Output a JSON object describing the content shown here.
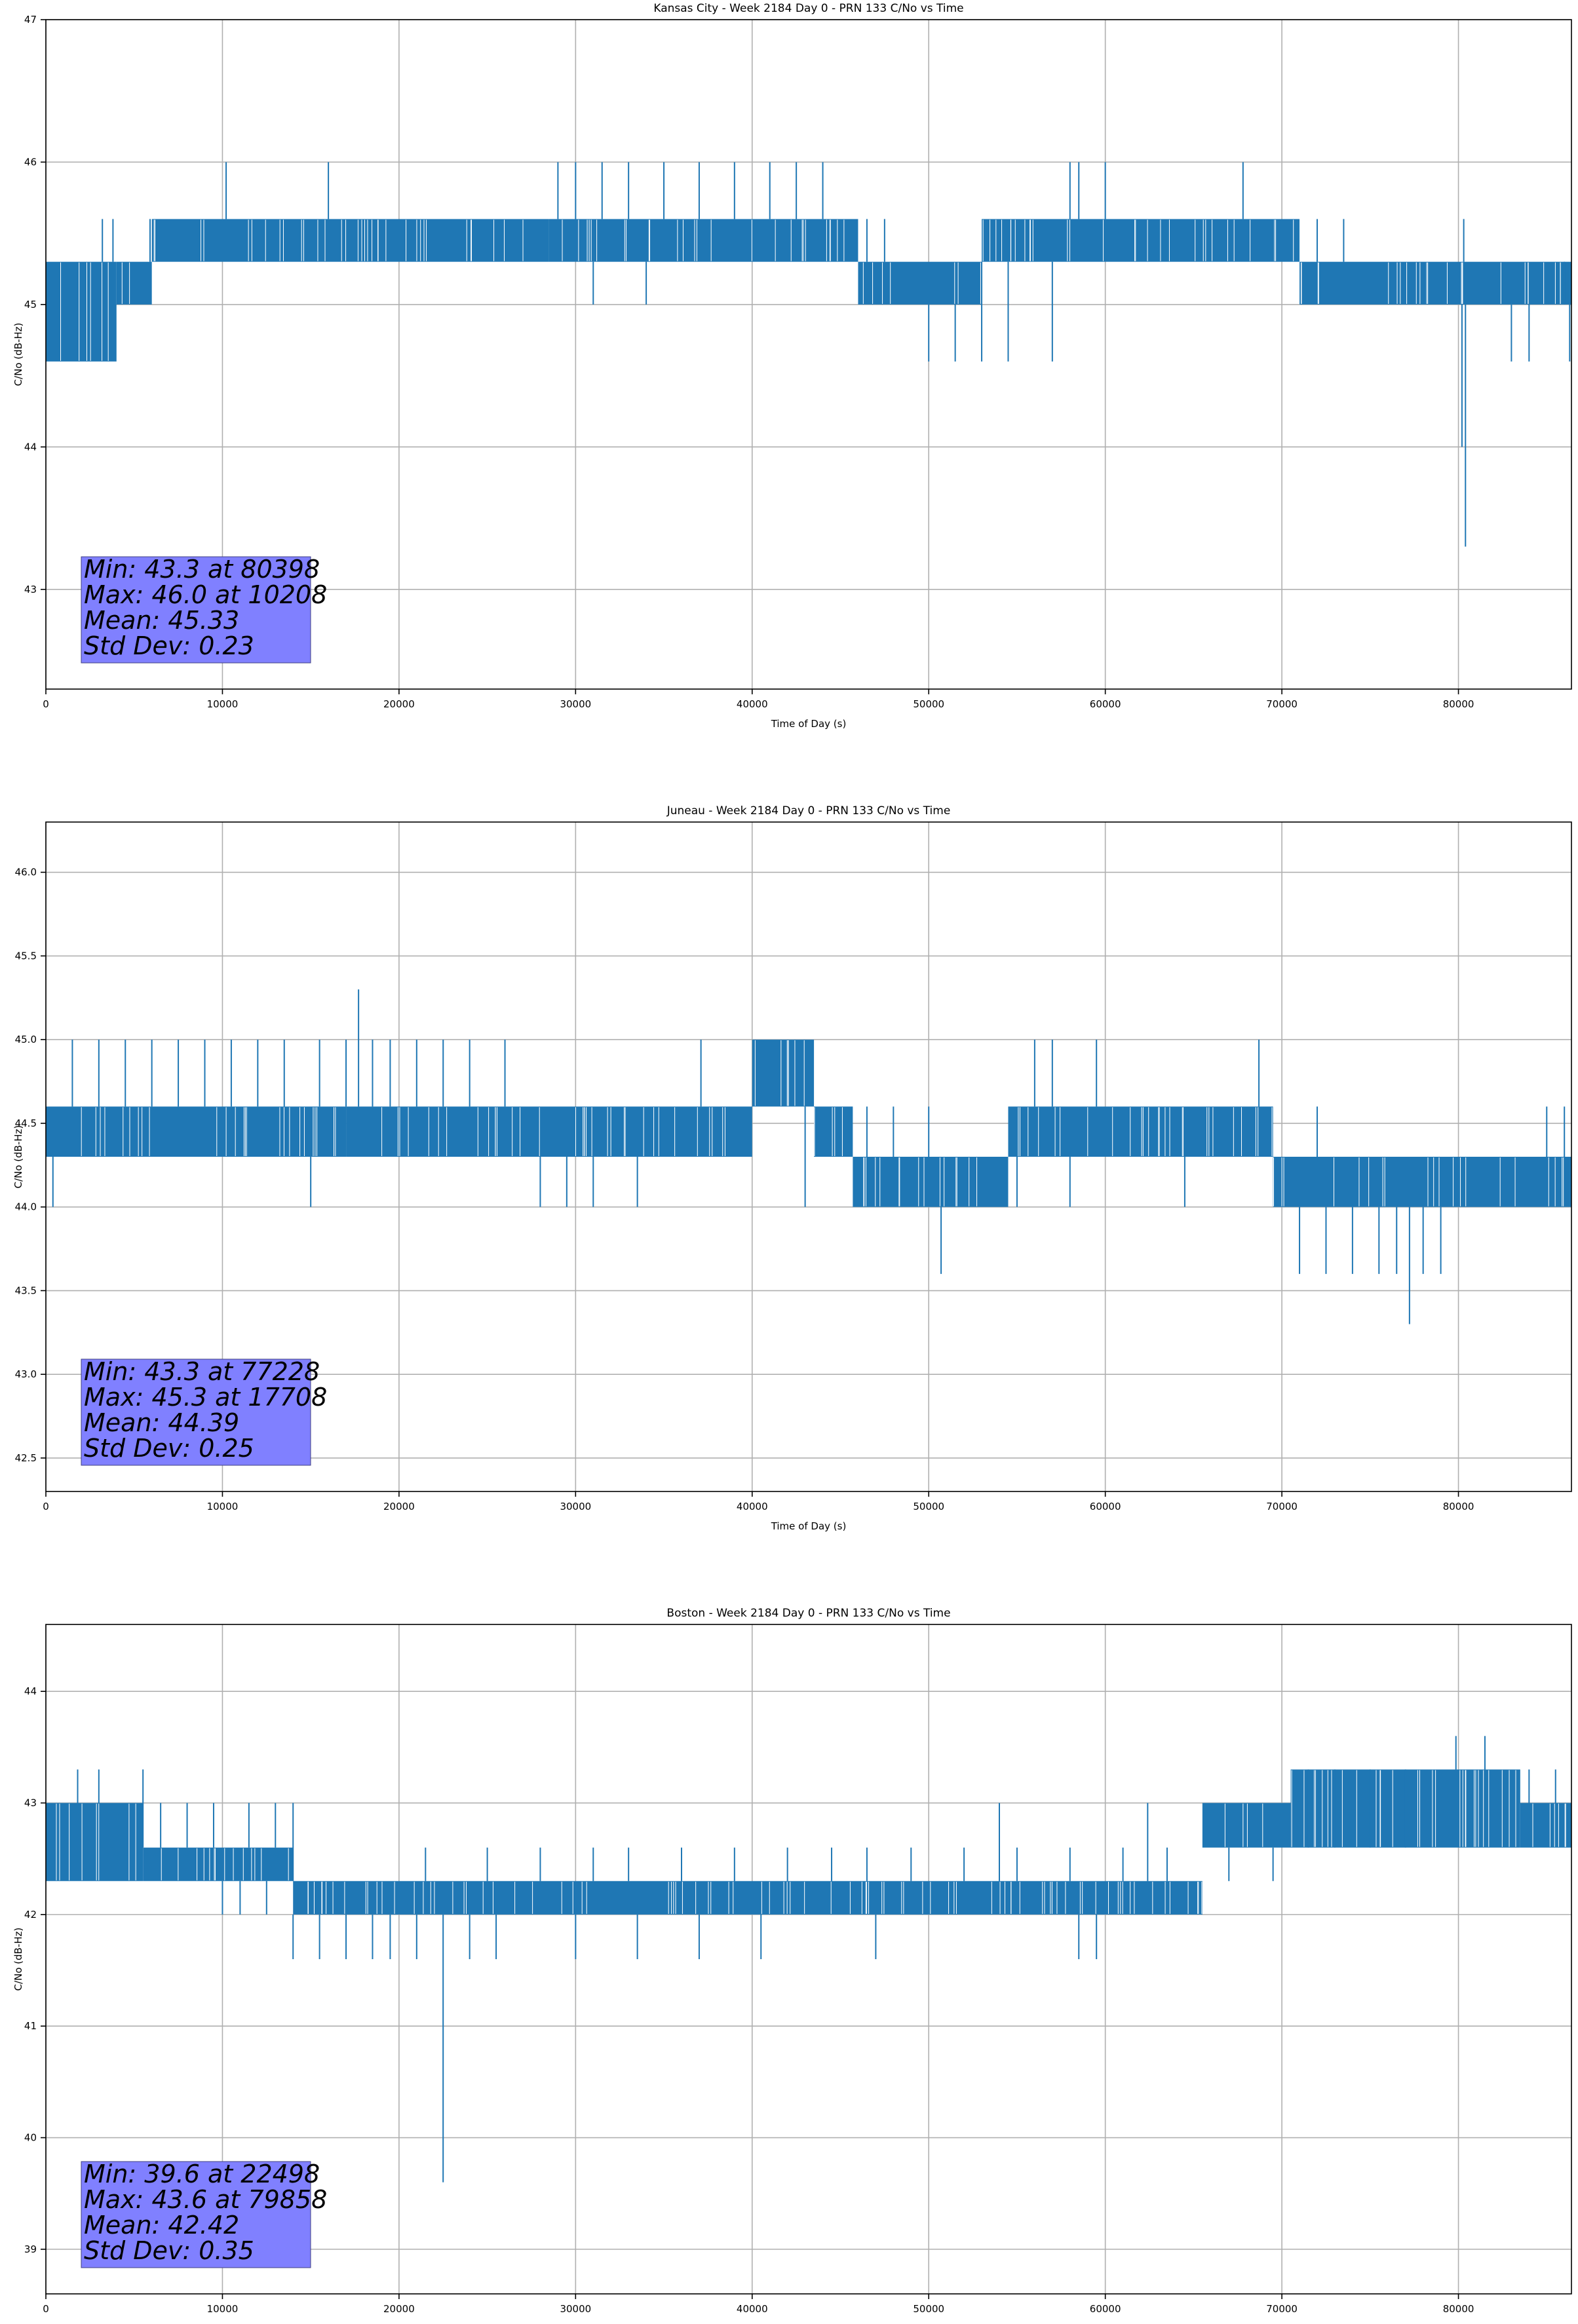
{
  "chart_data": [
    {
      "type": "line",
      "title": "Kansas City - Week 2184 Day 0 - PRN 133 C/No vs Time",
      "xlabel": "Time of Day (s)",
      "ylabel": "C/No (dB-Hz)",
      "xlim": [
        0,
        86400
      ],
      "ylim": [
        42.3,
        47.0
      ],
      "xticks": [
        0,
        10000,
        20000,
        30000,
        40000,
        50000,
        60000,
        70000,
        80000
      ],
      "yticks": [
        43,
        44,
        45,
        46,
        47
      ],
      "ytick_labels": [
        "43",
        "44",
        "45",
        "46",
        "47"
      ],
      "grid": true,
      "line_color": "#1f77b4",
      "stats_box_color": "#8080ff",
      "stats": [
        "Min: 43.3 at 80398",
        "Max: 46.0 at 10208",
        "Mean: 45.33",
        "Std Dev: 0.23"
      ],
      "series": [
        {
          "segments": [
            {
              "x": [
                0,
                4000
              ],
              "band": [
                44.6,
                45.3
              ]
            },
            {
              "x": [
                4000,
                6000
              ],
              "band": [
                45.0,
                45.3
              ]
            },
            {
              "x": [
                6000,
                28500
              ],
              "band": [
                45.3,
                45.6
              ]
            },
            {
              "x": [
                28500,
                46000
              ],
              "band": [
                45.3,
                45.6
              ]
            },
            {
              "x": [
                46000,
                53000
              ],
              "band": [
                45.0,
                45.3
              ]
            },
            {
              "x": [
                53000,
                71000
              ],
              "band": [
                45.3,
                45.6
              ]
            },
            {
              "x": [
                71000,
                86400
              ],
              "band": [
                45.0,
                45.3
              ]
            }
          ],
          "spikes": [
            {
              "x": 500,
              "y": 44.6
            },
            {
              "x": 1200,
              "y": 44.6
            },
            {
              "x": 2600,
              "y": 44.6
            },
            {
              "x": 3900,
              "y": 44.6
            },
            {
              "x": 3200,
              "y": 45.6
            },
            {
              "x": 3800,
              "y": 45.6
            },
            {
              "x": 5900,
              "y": 45.6
            },
            {
              "x": 10208,
              "y": 46.0
            },
            {
              "x": 16000,
              "y": 46.0
            },
            {
              "x": 29000,
              "y": 46.0
            },
            {
              "x": 30000,
              "y": 46.0
            },
            {
              "x": 31500,
              "y": 46.0
            },
            {
              "x": 33000,
              "y": 46.0
            },
            {
              "x": 35000,
              "y": 46.0
            },
            {
              "x": 37000,
              "y": 46.0
            },
            {
              "x": 39000,
              "y": 46.0
            },
            {
              "x": 41000,
              "y": 46.0
            },
            {
              "x": 42500,
              "y": 46.0
            },
            {
              "x": 44000,
              "y": 46.0
            },
            {
              "x": 31000,
              "y": 45.0
            },
            {
              "x": 34000,
              "y": 45.0
            },
            {
              "x": 46500,
              "y": 45.6
            },
            {
              "x": 47500,
              "y": 45.6
            },
            {
              "x": 50000,
              "y": 44.6
            },
            {
              "x": 51500,
              "y": 44.6
            },
            {
              "x": 53000,
              "y": 44.6
            },
            {
              "x": 54500,
              "y": 44.6
            },
            {
              "x": 57000,
              "y": 44.6
            },
            {
              "x": 58000,
              "y": 46.0
            },
            {
              "x": 58500,
              "y": 46.0
            },
            {
              "x": 60000,
              "y": 46.0
            },
            {
              "x": 67800,
              "y": 46.0
            },
            {
              "x": 72000,
              "y": 45.6
            },
            {
              "x": 73500,
              "y": 45.6
            },
            {
              "x": 80300,
              "y": 45.6
            },
            {
              "x": 80398,
              "y": 43.3
            },
            {
              "x": 80200,
              "y": 44.0
            },
            {
              "x": 83000,
              "y": 44.6
            },
            {
              "x": 84000,
              "y": 44.6
            },
            {
              "x": 86300,
              "y": 44.6
            },
            {
              "x": 86000,
              "y": 45.3
            }
          ]
        }
      ]
    },
    {
      "type": "line",
      "title": "Juneau - Week 2184 Day 0 - PRN 133 C/No vs Time",
      "xlabel": "Time of Day (s)",
      "ylabel": "C/No (dB-Hz)",
      "xlim": [
        0,
        86400
      ],
      "ylim": [
        42.3,
        46.3
      ],
      "xticks": [
        0,
        10000,
        20000,
        30000,
        40000,
        50000,
        60000,
        70000,
        80000
      ],
      "yticks": [
        42.5,
        43.0,
        43.5,
        44.0,
        44.5,
        45.0,
        45.5,
        46.0
      ],
      "ytick_labels": [
        "42.5",
        "43.0",
        "43.5",
        "44.0",
        "44.5",
        "45.0",
        "45.5",
        "46.0"
      ],
      "grid": true,
      "line_color": "#1f77b4",
      "stats_box_color": "#8080ff",
      "stats": [
        "Min: 43.3 at 77228",
        "Max: 45.3 at 17708",
        "Mean: 44.39",
        "Std Dev: 0.25"
      ],
      "series": [
        {
          "segments": [
            {
              "x": [
                0,
                17000
              ],
              "band": [
                44.3,
                44.6
              ]
            },
            {
              "x": [
                17000,
                20000
              ],
              "band": [
                44.3,
                44.6
              ]
            },
            {
              "x": [
                20000,
                40000
              ],
              "band": [
                44.3,
                44.6
              ]
            },
            {
              "x": [
                40000,
                43500
              ],
              "band": [
                44.6,
                45.0
              ]
            },
            {
              "x": [
                43500,
                45700
              ],
              "band": [
                44.3,
                44.6
              ]
            },
            {
              "x": [
                45700,
                54500
              ],
              "band": [
                44.0,
                44.3
              ]
            },
            {
              "x": [
                54500,
                69500
              ],
              "band": [
                44.3,
                44.6
              ]
            },
            {
              "x": [
                69500,
                86400
              ],
              "band": [
                44.0,
                44.3
              ]
            }
          ],
          "spikes": [
            {
              "x": 400,
              "y": 44.0
            },
            {
              "x": 1500,
              "y": 45.0
            },
            {
              "x": 3000,
              "y": 45.0
            },
            {
              "x": 4500,
              "y": 45.0
            },
            {
              "x": 6000,
              "y": 45.0
            },
            {
              "x": 7500,
              "y": 45.0
            },
            {
              "x": 9000,
              "y": 45.0
            },
            {
              "x": 10500,
              "y": 45.0
            },
            {
              "x": 12000,
              "y": 45.0
            },
            {
              "x": 13500,
              "y": 45.0
            },
            {
              "x": 15500,
              "y": 45.0
            },
            {
              "x": 17000,
              "y": 45.0
            },
            {
              "x": 18500,
              "y": 45.0
            },
            {
              "x": 19500,
              "y": 45.0
            },
            {
              "x": 21000,
              "y": 45.0
            },
            {
              "x": 22500,
              "y": 45.0
            },
            {
              "x": 24000,
              "y": 45.0
            },
            {
              "x": 26000,
              "y": 45.0
            },
            {
              "x": 37100,
              "y": 45.0
            },
            {
              "x": 17708,
              "y": 45.3
            },
            {
              "x": 15000,
              "y": 44.0
            },
            {
              "x": 28000,
              "y": 44.0
            },
            {
              "x": 29500,
              "y": 44.0
            },
            {
              "x": 31000,
              "y": 44.0
            },
            {
              "x": 33500,
              "y": 44.0
            },
            {
              "x": 42000,
              "y": 44.6
            },
            {
              "x": 43000,
              "y": 44.0
            },
            {
              "x": 46500,
              "y": 44.6
            },
            {
              "x": 48000,
              "y": 44.6
            },
            {
              "x": 50000,
              "y": 44.6
            },
            {
              "x": 50700,
              "y": 43.6
            },
            {
              "x": 56000,
              "y": 45.0
            },
            {
              "x": 57000,
              "y": 45.0
            },
            {
              "x": 59500,
              "y": 45.0
            },
            {
              "x": 68700,
              "y": 45.0
            },
            {
              "x": 55000,
              "y": 44.0
            },
            {
              "x": 58000,
              "y": 44.0
            },
            {
              "x": 64500,
              "y": 44.0
            },
            {
              "x": 71000,
              "y": 43.6
            },
            {
              "x": 72500,
              "y": 43.6
            },
            {
              "x": 74000,
              "y": 43.6
            },
            {
              "x": 75500,
              "y": 43.6
            },
            {
              "x": 76500,
              "y": 43.6
            },
            {
              "x": 78000,
              "y": 43.6
            },
            {
              "x": 79000,
              "y": 43.6
            },
            {
              "x": 77228,
              "y": 43.3
            },
            {
              "x": 72000,
              "y": 44.6
            },
            {
              "x": 85000,
              "y": 44.6
            },
            {
              "x": 86000,
              "y": 44.6
            }
          ]
        }
      ]
    },
    {
      "type": "line",
      "title": "Boston - Week 2184 Day 0 - PRN 133 C/No vs Time",
      "xlabel": "Time of Day (s)",
      "ylabel": "C/No (dB-Hz)",
      "xlim": [
        0,
        86400
      ],
      "ylim": [
        38.6,
        44.6
      ],
      "xticks": [
        0,
        10000,
        20000,
        30000,
        40000,
        50000,
        60000,
        70000,
        80000
      ],
      "yticks": [
        39,
        40,
        41,
        42,
        43,
        44
      ],
      "ytick_labels": [
        "39",
        "40",
        "41",
        "42",
        "43",
        "44"
      ],
      "grid": true,
      "line_color": "#1f77b4",
      "stats_box_color": "#8080ff",
      "stats": [
        "Min: 39.6 at 22498",
        "Max: 43.6 at 79858",
        "Mean: 42.42",
        "Std Dev: 0.35"
      ],
      "series": [
        {
          "segments": [
            {
              "x": [
                0,
                5500
              ],
              "band": [
                42.3,
                43.0
              ]
            },
            {
              "x": [
                5500,
                14000
              ],
              "band": [
                42.3,
                42.6
              ]
            },
            {
              "x": [
                14000,
                65500
              ],
              "band": [
                42.0,
                42.3
              ]
            },
            {
              "x": [
                65500,
                70500
              ],
              "band": [
                42.6,
                43.0
              ]
            },
            {
              "x": [
                70500,
                83500
              ],
              "band": [
                42.6,
                43.3
              ]
            },
            {
              "x": [
                83500,
                86400
              ],
              "band": [
                42.6,
                43.0
              ]
            }
          ],
          "spikes": [
            {
              "x": 1800,
              "y": 43.3
            },
            {
              "x": 3000,
              "y": 43.3
            },
            {
              "x": 5500,
              "y": 43.3
            },
            {
              "x": 6500,
              "y": 43.0
            },
            {
              "x": 8000,
              "y": 43.0
            },
            {
              "x": 9500,
              "y": 43.0
            },
            {
              "x": 11500,
              "y": 43.0
            },
            {
              "x": 13000,
              "y": 43.0
            },
            {
              "x": 14000,
              "y": 43.0
            },
            {
              "x": 10000,
              "y": 42.0
            },
            {
              "x": 11000,
              "y": 42.0
            },
            {
              "x": 12500,
              "y": 42.0
            },
            {
              "x": 14000,
              "y": 41.6
            },
            {
              "x": 15500,
              "y": 41.6
            },
            {
              "x": 17000,
              "y": 41.6
            },
            {
              "x": 18500,
              "y": 41.6
            },
            {
              "x": 19500,
              "y": 41.6
            },
            {
              "x": 21000,
              "y": 41.6
            },
            {
              "x": 24000,
              "y": 41.6
            },
            {
              "x": 25500,
              "y": 41.6
            },
            {
              "x": 30000,
              "y": 41.6
            },
            {
              "x": 33500,
              "y": 41.6
            },
            {
              "x": 37000,
              "y": 41.6
            },
            {
              "x": 40500,
              "y": 41.6
            },
            {
              "x": 47000,
              "y": 41.6
            },
            {
              "x": 58500,
              "y": 41.6
            },
            {
              "x": 59500,
              "y": 41.6
            },
            {
              "x": 22498,
              "y": 39.6
            },
            {
              "x": 21500,
              "y": 42.6
            },
            {
              "x": 25000,
              "y": 42.6
            },
            {
              "x": 28000,
              "y": 42.6
            },
            {
              "x": 31000,
              "y": 42.6
            },
            {
              "x": 33000,
              "y": 42.6
            },
            {
              "x": 36000,
              "y": 42.6
            },
            {
              "x": 39000,
              "y": 42.6
            },
            {
              "x": 42000,
              "y": 42.6
            },
            {
              "x": 44500,
              "y": 42.6
            },
            {
              "x": 46500,
              "y": 42.6
            },
            {
              "x": 49000,
              "y": 42.6
            },
            {
              "x": 52000,
              "y": 42.6
            },
            {
              "x": 55000,
              "y": 42.6
            },
            {
              "x": 58000,
              "y": 42.6
            },
            {
              "x": 61000,
              "y": 42.6
            },
            {
              "x": 63500,
              "y": 42.6
            },
            {
              "x": 54000,
              "y": 43.0
            },
            {
              "x": 62400,
              "y": 43.0
            },
            {
              "x": 67000,
              "y": 42.3
            },
            {
              "x": 69500,
              "y": 42.3
            },
            {
              "x": 71500,
              "y": 43.3
            },
            {
              "x": 73000,
              "y": 43.3
            },
            {
              "x": 75000,
              "y": 43.3
            },
            {
              "x": 77000,
              "y": 43.3
            },
            {
              "x": 79858,
              "y": 43.6
            },
            {
              "x": 81500,
              "y": 43.6
            },
            {
              "x": 84000,
              "y": 43.3
            },
            {
              "x": 85500,
              "y": 43.3
            }
          ]
        }
      ]
    }
  ]
}
